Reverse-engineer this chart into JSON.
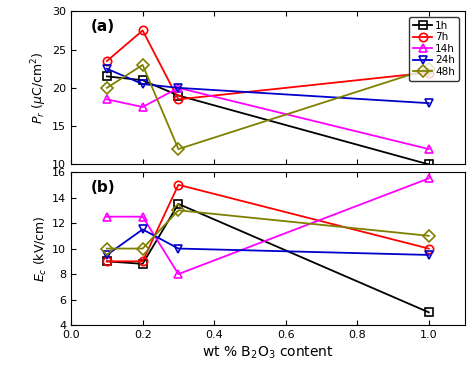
{
  "x": [
    0.1,
    0.2,
    0.3,
    1.0
  ],
  "panel_a": {
    "1h": [
      21.5,
      21.0,
      19.0,
      10.0
    ],
    "7h": [
      23.5,
      27.5,
      18.5,
      22.0
    ],
    "14h": [
      18.5,
      17.5,
      20.0,
      12.0
    ],
    "24h": [
      22.5,
      20.5,
      20.0,
      18.0
    ],
    "48h": [
      20.0,
      23.0,
      12.0,
      22.5
    ]
  },
  "panel_b": {
    "1h": [
      9.0,
      8.8,
      13.5,
      5.0
    ],
    "7h": [
      9.0,
      9.0,
      15.0,
      10.0
    ],
    "14h": [
      12.5,
      12.5,
      8.0,
      15.5
    ],
    "24h": [
      9.5,
      11.5,
      10.0,
      9.5
    ],
    "48h": [
      10.0,
      10.0,
      13.0,
      11.0
    ]
  },
  "colors": {
    "1h": "#000000",
    "7h": "#ff0000",
    "14h": "#ff00ff",
    "24h": "#0000cc",
    "48h": "#808000"
  },
  "markers": {
    "1h": "s",
    "7h": "o",
    "14h": "^",
    "24h": "v",
    "48h": "D"
  },
  "labels": [
    "1h",
    "7h",
    "14h",
    "24h",
    "48h"
  ],
  "xlabel": "wt % B$_2$O$_3$ content",
  "ylabel_a": "$P_r$ ($\\mu$C/cm$^2$)",
  "ylabel_b": "$E_c$ (kV/cm)",
  "ylim_a": [
    10,
    30
  ],
  "ylim_b": [
    4,
    16
  ],
  "yticks_a": [
    10,
    15,
    20,
    25,
    30
  ],
  "yticks_b": [
    4,
    6,
    8,
    10,
    12,
    14,
    16
  ],
  "xlim": [
    0.0,
    1.1
  ],
  "xticks": [
    0.0,
    0.2,
    0.4,
    0.6,
    0.8,
    1.0
  ],
  "bg_color": "#ffffff",
  "fig_border_color": "#000000"
}
